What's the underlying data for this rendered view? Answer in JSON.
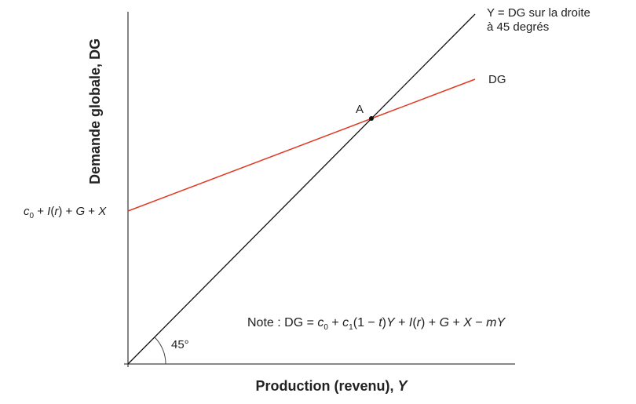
{
  "y_axis_title": "Demande globale, DG",
  "x_axis_title": [
    "Production (revenu), ",
    "Y"
  ],
  "line_45_label": [
    "Y = DG sur la droite",
    "à 45 degrés"
  ],
  "dg_line_label": "DG",
  "intercept_label": [
    "c",
    "0",
    " + ",
    "I",
    "(",
    "r",
    ") + ",
    "G",
    " + ",
    "X"
  ],
  "point_label": "A",
  "angle_label": "45°",
  "note": [
    "Note : DG = ",
    "c",
    "0",
    " + ",
    "c",
    "1",
    "(1 − ",
    "t",
    ")",
    "Y",
    " + ",
    "I",
    "(",
    "r",
    ") + ",
    "G",
    " + ",
    "X",
    " − ",
    "m",
    "Y"
  ]
}
